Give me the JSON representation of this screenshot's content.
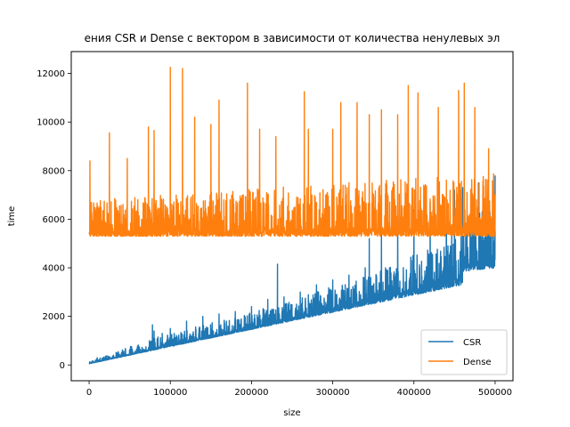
{
  "chart_data": {
    "type": "line",
    "title": "ения CSR и Dense с вектором в зависимости от количества ненулевых эл",
    "xlabel": "size",
    "ylabel": "time",
    "xlim": [
      -22000,
      522000
    ],
    "ylim": [
      -650,
      12900
    ],
    "xticks": [
      0,
      100000,
      200000,
      300000,
      400000,
      500000
    ],
    "xtick_labels": [
      "0",
      "100000",
      "200000",
      "300000",
      "400000",
      "500000"
    ],
    "yticks": [
      0,
      2000,
      4000,
      6000,
      8000,
      10000,
      12000
    ],
    "ytick_labels": [
      "0",
      "2000",
      "4000",
      "6000",
      "8000",
      "10000",
      "12000"
    ],
    "grid": false,
    "legend_position": "lower-right",
    "series": [
      {
        "name": "CSR",
        "color": "#1f77b4",
        "baseline": [
          [
            0,
            50
          ],
          [
            460000,
            3300
          ],
          [
            460001,
            3850
          ],
          [
            500000,
            4000
          ]
        ],
        "noise_amp": [
          [
            0,
            80
          ],
          [
            80000,
            500
          ],
          [
            200000,
            700
          ],
          [
            340000,
            1200
          ],
          [
            460000,
            2300
          ],
          [
            500000,
            3000
          ]
        ],
        "x": [
          0,
          10000,
          20000,
          30000,
          40000,
          50000,
          60000,
          70000,
          78000,
          80000,
          90000,
          100000,
          120000,
          140000,
          160000,
          180000,
          200000,
          220000,
          232000,
          240000,
          260000,
          280000,
          300000,
          320000,
          340000,
          345000,
          360000,
          380000,
          400000,
          420000,
          440000,
          450000,
          460000,
          480000,
          500000
        ],
        "peaks": [
          80,
          300,
          350,
          400,
          500,
          560,
          650,
          750,
          1650,
          1400,
          1300,
          1500,
          1800,
          2000,
          2100,
          2200,
          2400,
          2700,
          4150,
          2800,
          3000,
          3300,
          3500,
          3700,
          4000,
          5200,
          5500,
          6000,
          6400,
          6700,
          7000,
          7200,
          7300,
          7500,
          7800
        ]
      },
      {
        "name": "Dense",
        "color": "#ff7f0e",
        "baseline": [
          [
            0,
            5300
          ],
          [
            500000,
            5300
          ]
        ],
        "noise_amp": [
          [
            0,
            1500
          ],
          [
            500000,
            2600
          ]
        ],
        "x": [
          1000,
          25000,
          47000,
          60000,
          73000,
          80000,
          100000,
          115000,
          130000,
          150000,
          160000,
          195000,
          210000,
          230000,
          265000,
          270000,
          300000,
          310000,
          330000,
          345000,
          360000,
          380000,
          393000,
          405000,
          430000,
          455000,
          462000,
          475000,
          492000
        ],
        "peaks": [
          8400,
          9550,
          8500,
          6800,
          9800,
          9650,
          12250,
          12200,
          10200,
          9900,
          10900,
          11600,
          9700,
          9400,
          11250,
          9700,
          9700,
          10800,
          10800,
          10300,
          10500,
          10300,
          11500,
          11200,
          10600,
          11300,
          11600,
          10600,
          8900
        ]
      }
    ]
  }
}
